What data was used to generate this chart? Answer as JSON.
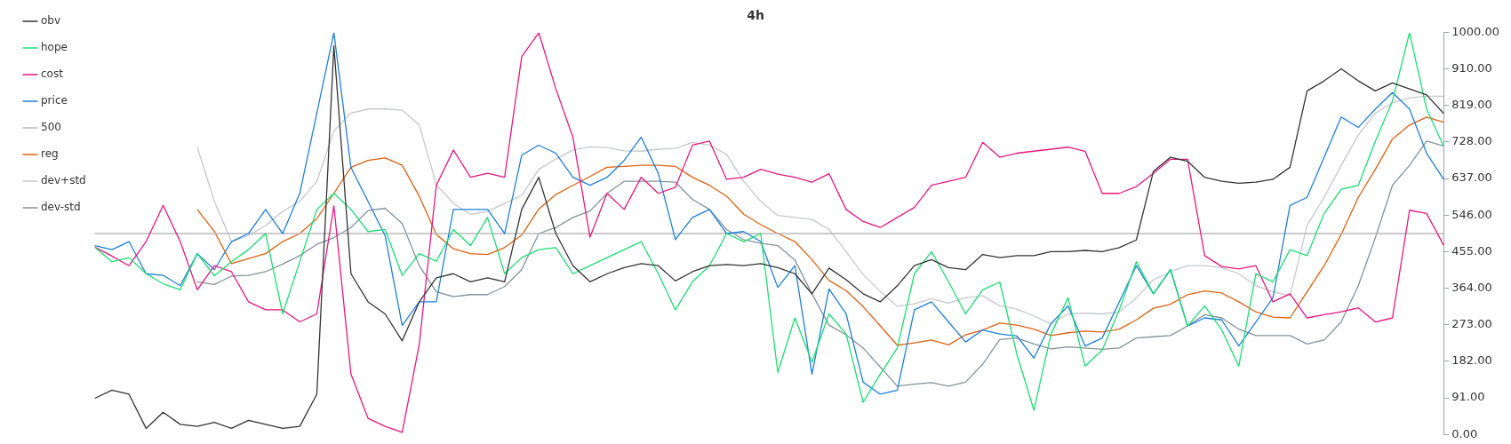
{
  "chart_data": {
    "type": "line",
    "title": "4h",
    "categories": [
      null,
      null,
      null,
      null,
      null,
      null,
      null,
      null,
      null,
      null,
      null,
      null,
      null,
      null,
      null,
      null,
      null,
      null,
      null,
      null,
      null,
      null,
      null,
      null,
      null,
      null,
      null,
      null,
      null,
      null,
      null,
      null,
      null,
      null,
      null,
      null,
      null,
      null,
      null,
      null,
      null,
      null,
      null,
      null,
      null,
      null,
      null,
      null,
      null,
      null,
      null,
      null,
      null,
      null,
      null,
      null,
      null,
      null,
      null,
      null,
      null,
      null,
      null,
      null,
      null,
      null,
      null,
      null,
      null,
      null,
      null,
      null,
      null,
      null,
      null,
      null,
      null,
      null,
      null,
      null
    ],
    "series": [
      {
        "name": "obv",
        "color": "#333333",
        "values": [
          90,
          110,
          100,
          15,
          55,
          25,
          20,
          30,
          15,
          35,
          25,
          15,
          20,
          100,
          967,
          400,
          330,
          300,
          233,
          330,
          390,
          400,
          380,
          390,
          380,
          560,
          640,
          500,
          420,
          380,
          400,
          415,
          425,
          420,
          382,
          405,
          420,
          423,
          420,
          425,
          415,
          400,
          350,
          414,
          385,
          350,
          330,
          370,
          420,
          435,
          415,
          410,
          448,
          440,
          445,
          445,
          455,
          455,
          458,
          455,
          465,
          484,
          655,
          690,
          680,
          640,
          630,
          625,
          628,
          635,
          665,
          855,
          880,
          910,
          880,
          855,
          875,
          860,
          845,
          799
        ]
      },
      {
        "name": "hope",
        "color": "#18e070",
        "values": [
          466,
          430,
          440,
          400,
          375,
          360,
          450,
          395,
          430,
          460,
          500,
          300,
          430,
          560,
          600,
          560,
          505,
          510,
          396,
          450,
          431,
          510,
          470,
          540,
          400,
          440,
          460,
          465,
          400,
          420,
          440,
          460,
          480,
          400,
          310,
          380,
          420,
          500,
          480,
          500,
          154,
          290,
          180,
          300,
          250,
          80,
          150,
          215,
          400,
          455,
          380,
          300,
          360,
          379,
          200,
          60,
          250,
          340,
          170,
          210,
          310,
          430,
          350,
          410,
          270,
          320,
          260,
          170,
          400,
          380,
          460,
          445,
          550,
          610,
          620,
          730,
          830,
          1000,
          810,
          717
        ]
      },
      {
        "name": "cost",
        "color": "#e8177f",
        "values": [
          466,
          444,
          420,
          480,
          570,
          480,
          360,
          420,
          405,
          330,
          310,
          310,
          280,
          300,
          569,
          150,
          40,
          20,
          5,
          224,
          620,
          708,
          640,
          650,
          640,
          940,
          1000,
          860,
          740,
          491,
          600,
          560,
          640,
          600,
          615,
          720,
          730,
          635,
          640,
          660,
          648,
          640,
          628,
          649,
          560,
          530,
          515,
          540,
          565,
          620,
          630,
          640,
          727,
          690,
          700,
          705,
          710,
          715,
          705,
          600,
          600,
          617,
          650,
          685,
          685,
          445,
          418,
          412,
          420,
          330,
          350,
          290,
          298,
          305,
          315,
          280,
          290,
          558,
          550,
          471
        ]
      },
      {
        "name": "price",
        "color": "#1e7fe0",
        "values": [
          470,
          460,
          480,
          400,
          396,
          370,
          450,
          410,
          480,
          500,
          560,
          500,
          600,
          800,
          1000,
          664,
          580,
          495,
          271,
          330,
          330,
          560,
          560,
          560,
          500,
          695,
          720,
          700,
          640,
          620,
          640,
          682,
          740,
          650,
          485,
          540,
          560,
          500,
          505,
          480,
          366,
          420,
          150,
          362,
          300,
          130,
          100,
          110,
          310,
          330,
          280,
          230,
          260,
          250,
          245,
          190,
          276,
          320,
          220,
          240,
          330,
          420,
          350,
          410,
          270,
          290,
          285,
          220,
          280,
          340,
          570,
          590,
          690,
          790,
          764,
          810,
          851,
          810,
          700,
          635
        ]
      },
      {
        "name": "500",
        "color": "#b8b8b8",
        "values": [
          500,
          500,
          500,
          500,
          500,
          500,
          500,
          500,
          500,
          500,
          500,
          500,
          500,
          500,
          500,
          500,
          500,
          500,
          500,
          500,
          500,
          500,
          500,
          500,
          500,
          500,
          500,
          500,
          500,
          500,
          500,
          500,
          500,
          500,
          500,
          500,
          500,
          500,
          500,
          500,
          500,
          500,
          500,
          500,
          500,
          500,
          500,
          500,
          500,
          500,
          500,
          500,
          500,
          500,
          500,
          500,
          500,
          500,
          500,
          500,
          500,
          500,
          500,
          500,
          500,
          500,
          500,
          500,
          500,
          500,
          500,
          500,
          500,
          500,
          500,
          500,
          500,
          500,
          500,
          500
        ]
      },
      {
        "name": "reg",
        "color": "#e06010",
        "values": [
          null,
          null,
          null,
          null,
          null,
          null,
          560,
          505,
          425,
          438,
          450,
          480,
          500,
          537,
          600,
          665,
          682,
          688,
          670,
          593,
          498,
          462,
          450,
          448,
          465,
          496,
          561,
          597,
          620,
          642,
          665,
          667,
          670,
          670,
          667,
          640,
          620,
          593,
          548,
          522,
          500,
          480,
          435,
          383,
          358,
          318,
          270,
          222,
          228,
          235,
          223,
          248,
          260,
          277,
          272,
          262,
          246,
          253,
          257,
          255,
          262,
          285,
          314,
          324,
          348,
          357,
          352,
          330,
          305,
          292,
          290,
          355,
          420,
          498,
          590,
          660,
          735,
          770,
          790,
          777
        ]
      },
      {
        "name": "dev+std",
        "color": "#c4c8cc",
        "values": [
          null,
          null,
          null,
          null,
          null,
          null,
          715,
          580,
          480,
          495,
          520,
          555,
          580,
          630,
          755,
          800,
          810,
          810,
          807,
          770,
          622,
          575,
          548,
          555,
          575,
          595,
          660,
          685,
          708,
          716,
          714,
          706,
          705,
          710,
          712,
          727,
          720,
          697,
          630,
          580,
          545,
          540,
          535,
          510,
          455,
          398,
          356,
          319,
          325,
          338,
          327,
          340,
          345,
          320,
          312,
          295,
          275,
          300,
          302,
          300,
          305,
          340,
          385,
          405,
          420,
          420,
          415,
          400,
          370,
          355,
          345,
          520,
          590,
          670,
          745,
          800,
          825,
          838,
          842,
          842
        ]
      },
      {
        "name": "dev-std",
        "color": "#84929a",
        "values": [
          null,
          null,
          null,
          null,
          null,
          null,
          380,
          373,
          394,
          396,
          405,
          424,
          445,
          473,
          490,
          515,
          557,
          563,
          525,
          420,
          355,
          343,
          348,
          348,
          368,
          410,
          500,
          515,
          540,
          556,
          600,
          630,
          630,
          630,
          628,
          585,
          560,
          510,
          485,
          476,
          470,
          434,
          350,
          272,
          248,
          215,
          168,
          120,
          125,
          129,
          120,
          130,
          175,
          236,
          240,
          225,
          213,
          218,
          215,
          212,
          215,
          240,
          243,
          246,
          270,
          298,
          290,
          262,
          246,
          246,
          246,
          225,
          235,
          280,
          370,
          490,
          620,
          670,
          730,
          718
        ]
      }
    ],
    "ylim": [
      0,
      1000
    ],
    "yticks": [
      {
        "value": 0,
        "label": "0.00"
      },
      {
        "value": 91,
        "label": "91.00"
      },
      {
        "value": 182,
        "label": "182.00"
      },
      {
        "value": 273,
        "label": "273.00"
      },
      {
        "value": 364,
        "label": "364.00"
      },
      {
        "value": 455,
        "label": "455.00"
      },
      {
        "value": 546,
        "label": "546.00"
      },
      {
        "value": 637,
        "label": "637.00"
      },
      {
        "value": 728,
        "label": "728.00"
      },
      {
        "value": 819,
        "label": "819.00"
      },
      {
        "value": 910,
        "label": "910.00"
      },
      {
        "value": 1000,
        "label": "1000.00"
      }
    ],
    "tick_labels": "y",
    "legend": "top left",
    "marker": "none",
    "line_style": "solid"
  }
}
